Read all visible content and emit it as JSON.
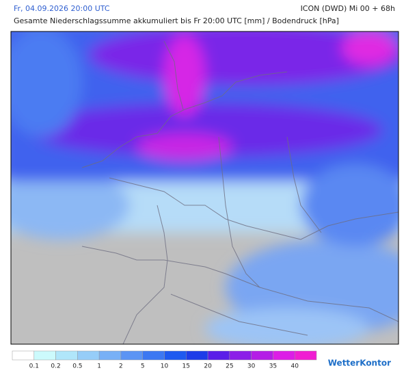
{
  "header": {
    "date": "Fr, 04.09.2026 20:00 UTC",
    "model": "ICON (DWD) Mi 00 + 68h",
    "subtitle": "Gesamte Niederschlagssumme akkumuliert bis Fr 20:00 UTC [mm] / Bodendruck [hPa]"
  },
  "legend": {
    "colors": [
      "#ffffff",
      "#ccfafc",
      "#b0e6fa",
      "#96cdf8",
      "#78b0f6",
      "#5c94f4",
      "#3c78f2",
      "#1e5af0",
      "#1e3ce8",
      "#5a1ee8",
      "#8c1ee8",
      "#b41ee6",
      "#dc1ee6",
      "#f01ed2"
    ],
    "labels": [
      0.1,
      0.2,
      0.5,
      1,
      2,
      5,
      10,
      15,
      20,
      25,
      30,
      35,
      40
    ]
  },
  "logo": "WetterKontor"
}
